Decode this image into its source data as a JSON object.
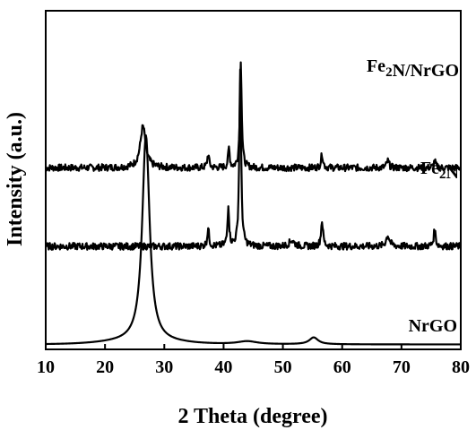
{
  "chart_data": {
    "type": "line",
    "title": "",
    "xlabel": "2 Theta (degree)",
    "ylabel": "Intensity (a.u.)",
    "xlim": [
      10,
      80
    ],
    "xticks": [
      10,
      20,
      30,
      40,
      50,
      60,
      70,
      80
    ],
    "xtick_labels": [
      "10",
      "20",
      "30",
      "40",
      "50",
      "60",
      "70",
      "80"
    ],
    "yticks": false,
    "grid": false,
    "legend": "none",
    "series": [
      {
        "name": "Fe2N/NrGO",
        "label_parts": [
          {
            "text": "Fe",
            "sub": false
          },
          {
            "text": "2",
            "sub": true
          },
          {
            "text": "N/NrGO",
            "sub": false
          }
        ],
        "baseline": 1.8,
        "noise": 0.035,
        "peaks": [
          {
            "x": 26.4,
            "height": 0.42,
            "width": 0.55
          },
          {
            "x": 37.4,
            "height": 0.14,
            "width": 0.18
          },
          {
            "x": 40.9,
            "height": 0.2,
            "width": 0.16
          },
          {
            "x": 42.9,
            "height": 1.1,
            "width": 0.18
          },
          {
            "x": 56.6,
            "height": 0.14,
            "width": 0.2
          },
          {
            "x": 67.7,
            "height": 0.07,
            "width": 0.25
          },
          {
            "x": 75.6,
            "height": 0.07,
            "width": 0.2
          }
        ]
      },
      {
        "name": "Fe2N",
        "label_parts": [
          {
            "text": "Fe",
            "sub": false
          },
          {
            "text": "2",
            "sub": true
          },
          {
            "text": "N",
            "sub": false
          }
        ],
        "baseline": 1.0,
        "noise": 0.035,
        "peaks": [
          {
            "x": 37.4,
            "height": 0.18,
            "width": 0.18
          },
          {
            "x": 40.8,
            "height": 0.42,
            "width": 0.16
          },
          {
            "x": 42.8,
            "height": 1.82,
            "width": 0.18
          },
          {
            "x": 51.5,
            "height": 0.06,
            "width": 0.5
          },
          {
            "x": 56.6,
            "height": 0.26,
            "width": 0.2
          },
          {
            "x": 67.7,
            "height": 0.11,
            "width": 0.35
          },
          {
            "x": 75.6,
            "height": 0.17,
            "width": 0.2
          }
        ]
      },
      {
        "name": "NrGO",
        "label_parts": [
          {
            "text": "NrGO",
            "sub": false
          }
        ],
        "baseline": 0.0,
        "noise": 0.0,
        "peaks": [
          {
            "x": 26.9,
            "height": 2.1,
            "width": 0.75
          },
          {
            "x": 44.0,
            "height": 0.03,
            "width": 2.0
          },
          {
            "x": 55.2,
            "height": 0.07,
            "width": 0.9
          }
        ]
      }
    ]
  }
}
